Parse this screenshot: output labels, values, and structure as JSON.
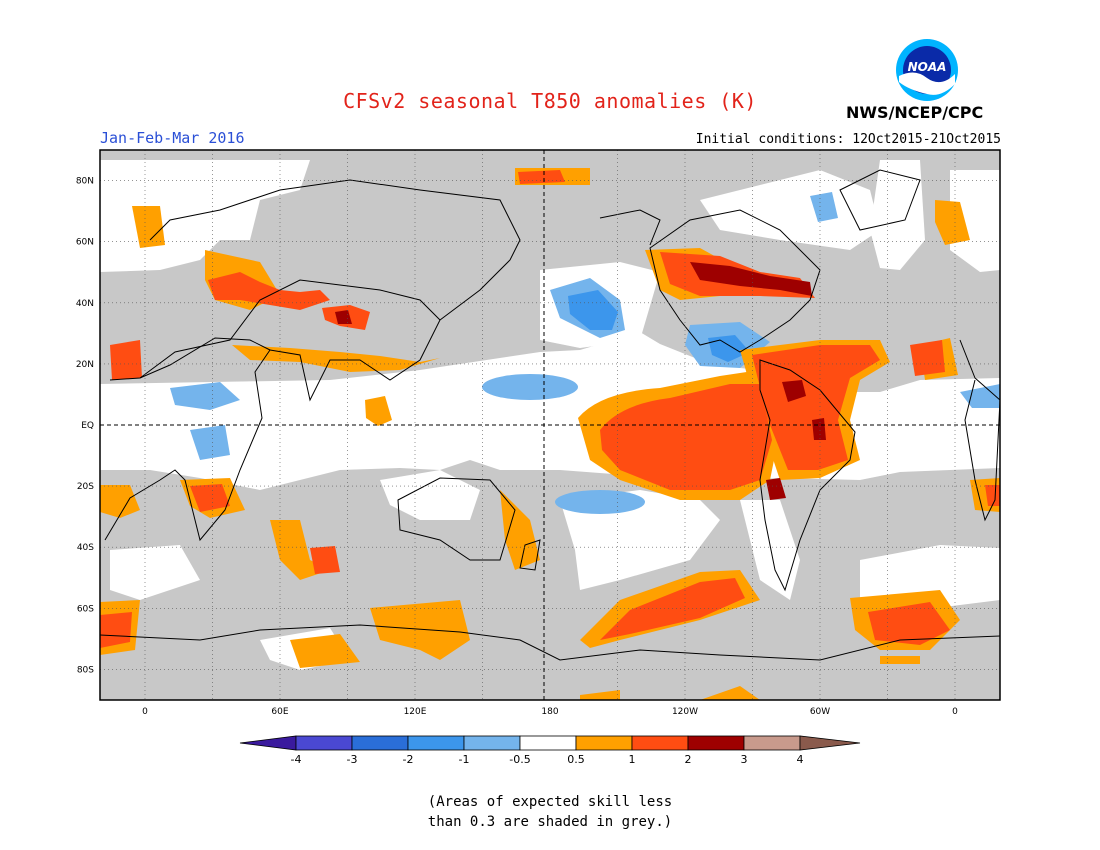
{
  "header": {
    "title": "CFSv2 seasonal T850 anomalies (K)",
    "period": "Jan-Feb-Mar 2016",
    "initial_conditions": "Initial conditions: 12Oct2015-21Oct2015",
    "agency": "NWS/NCEP/CPC",
    "logo_text": "NOAA"
  },
  "map": {
    "projection": "equirectangular",
    "lon_range": [
      -20,
      380
    ],
    "lat_range": [
      -90,
      90
    ],
    "lat_ticks": [
      "80N",
      "60N",
      "40N",
      "20N",
      "EQ",
      "20S",
      "40S",
      "60S",
      "80S"
    ],
    "lon_ticks": [
      "0",
      "60E",
      "120E",
      "180",
      "120W",
      "60W",
      "0"
    ],
    "colors": {
      "grey": "#c8c8c8",
      "blue_light": "#74b4ec",
      "blue": "#3c96ec",
      "orange": "#ffa000",
      "red_orange": "#ff4d12",
      "dark_red": "#9e0000"
    }
  },
  "colorbar": {
    "labels": [
      "-4",
      "-3",
      "-2",
      "-1",
      "-0.5",
      "0.5",
      "1",
      "2",
      "3",
      "4"
    ],
    "colors": [
      "#3a1a9e",
      "#4a48d2",
      "#2a6ed8",
      "#3c96ec",
      "#74b4ec",
      "#ffffff",
      "#ffa000",
      "#ff4d12",
      "#9e0000",
      "#c89a8c",
      "#8a5a4c"
    ]
  },
  "note": {
    "line1": "(Areas of expected skill less",
    "line2": "than 0.3 are shaded in grey.)"
  }
}
